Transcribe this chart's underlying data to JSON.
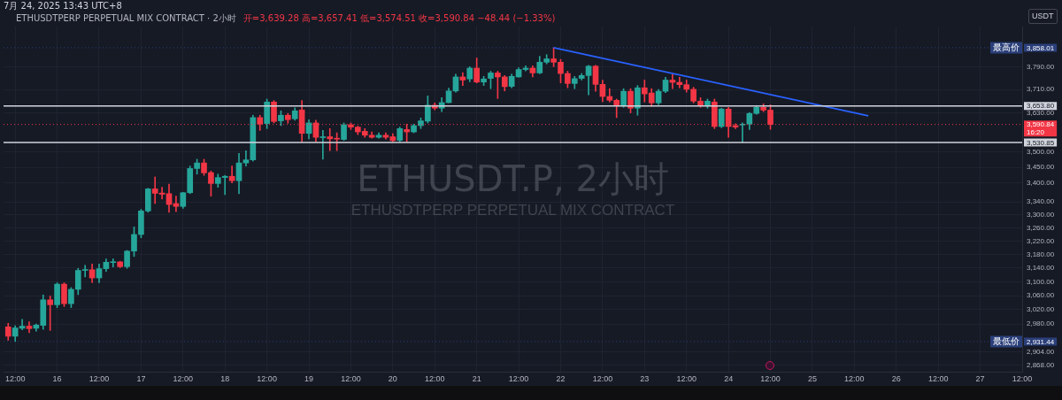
{
  "chart_data": {
    "type": "candlestick",
    "title": "ETHUSDT.P, 2小时",
    "subtitle": "ETHUSDTPERP PERPETUAL MIX CONTRACT",
    "ylabel": "USDT",
    "annotations": [
      "7月 24, 2025 13:43 UTC+8",
      "ETHUSDTPERP PERPETUAL MIX CONTRACT · 2小时",
      "开=3,639.28 高=3,657.41 低=3,574.51 收=3,590.84 −48.44 (−1.33%)"
    ],
    "x": [
      "2025-07-15T10:00",
      "2025-07-15T12:00",
      "2025-07-15T14:00",
      "2025-07-15T16:00",
      "2025-07-15T18:00",
      "2025-07-15T20:00",
      "2025-07-15T22:00",
      "2025-07-16T00:00",
      "2025-07-16T02:00",
      "2025-07-16T04:00",
      "2025-07-16T06:00",
      "2025-07-16T08:00",
      "2025-07-16T10:00",
      "2025-07-16T12:00",
      "2025-07-16T14:00",
      "2025-07-16T16:00",
      "2025-07-16T18:00",
      "2025-07-16T20:00",
      "2025-07-16T22:00",
      "2025-07-17T00:00",
      "2025-07-17T02:00",
      "2025-07-17T04:00",
      "2025-07-17T06:00",
      "2025-07-17T08:00",
      "2025-07-17T10:00",
      "2025-07-17T12:00",
      "2025-07-17T14:00",
      "2025-07-17T16:00",
      "2025-07-17T18:00",
      "2025-07-17T20:00",
      "2025-07-17T22:00",
      "2025-07-18T00:00",
      "2025-07-18T02:00",
      "2025-07-18T04:00",
      "2025-07-18T06:00",
      "2025-07-18T08:00",
      "2025-07-18T10:00",
      "2025-07-18T12:00",
      "2025-07-18T14:00",
      "2025-07-18T16:00",
      "2025-07-18T18:00",
      "2025-07-18T20:00",
      "2025-07-18T22:00",
      "2025-07-19T00:00",
      "2025-07-19T02:00",
      "2025-07-19T04:00",
      "2025-07-19T06:00",
      "2025-07-19T08:00",
      "2025-07-19T10:00",
      "2025-07-19T12:00",
      "2025-07-19T14:00",
      "2025-07-19T16:00",
      "2025-07-19T18:00",
      "2025-07-19T20:00",
      "2025-07-19T22:00",
      "2025-07-20T00:00",
      "2025-07-20T02:00",
      "2025-07-20T04:00",
      "2025-07-20T06:00",
      "2025-07-20T08:00",
      "2025-07-20T10:00",
      "2025-07-20T12:00",
      "2025-07-20T14:00",
      "2025-07-20T16:00",
      "2025-07-20T18:00",
      "2025-07-20T20:00",
      "2025-07-20T22:00",
      "2025-07-21T00:00",
      "2025-07-21T02:00",
      "2025-07-21T04:00",
      "2025-07-21T06:00",
      "2025-07-21T08:00",
      "2025-07-21T10:00",
      "2025-07-21T12:00",
      "2025-07-21T14:00",
      "2025-07-21T16:00",
      "2025-07-21T18:00",
      "2025-07-21T20:00",
      "2025-07-21T22:00",
      "2025-07-22T00:00",
      "2025-07-22T02:00",
      "2025-07-22T04:00",
      "2025-07-22T06:00",
      "2025-07-22T08:00",
      "2025-07-22T10:00",
      "2025-07-22T12:00",
      "2025-07-22T14:00",
      "2025-07-22T16:00",
      "2025-07-22T18:00",
      "2025-07-22T20:00",
      "2025-07-22T22:00",
      "2025-07-23T00:00",
      "2025-07-23T02:00",
      "2025-07-23T04:00",
      "2025-07-23T06:00",
      "2025-07-23T08:00",
      "2025-07-23T10:00",
      "2025-07-23T12:00",
      "2025-07-23T14:00",
      "2025-07-23T16:00",
      "2025-07-23T18:00",
      "2025-07-23T20:00",
      "2025-07-23T22:00",
      "2025-07-24T00:00",
      "2025-07-24T02:00",
      "2025-07-24T04:00",
      "2025-07-24T06:00",
      "2025-07-24T08:00",
      "2025-07-24T10:00",
      "2025-07-24T12:00"
    ],
    "ohlc": [
      [
        2972,
        2982,
        2935,
        2946
      ],
      [
        2946,
        2975,
        2931.44,
        2969
      ],
      [
        2968,
        2993,
        2964,
        2974
      ],
      [
        2974,
        2986,
        2956,
        2967
      ],
      [
        2968,
        2980,
        2960,
        2977
      ],
      [
        2976,
        3062,
        2965,
        3048
      ],
      [
        3048,
        3059,
        2962,
        3034
      ],
      [
        3034,
        3097,
        3026,
        3093
      ],
      [
        3093,
        3097,
        3029,
        3037
      ],
      [
        3037,
        3083,
        3026,
        3078
      ],
      [
        3078,
        3139,
        3063,
        3133
      ],
      [
        3133,
        3148,
        3114,
        3135
      ],
      [
        3135,
        3152,
        3097,
        3111
      ],
      [
        3111,
        3152,
        3097,
        3138
      ],
      [
        3138,
        3167,
        3130,
        3157
      ],
      [
        3156,
        3167,
        3143,
        3158
      ],
      [
        3158,
        3160,
        3141,
        3144
      ],
      [
        3144,
        3192,
        3139,
        3190
      ],
      [
        3190,
        3263,
        3174,
        3240
      ],
      [
        3240,
        3317,
        3230,
        3312
      ],
      [
        3312,
        3383,
        3308,
        3381
      ],
      [
        3381,
        3419,
        3335,
        3367
      ],
      [
        3368,
        3386,
        3349,
        3364
      ],
      [
        3366,
        3396,
        3308,
        3332
      ],
      [
        3335,
        3358,
        3310,
        3326
      ],
      [
        3326,
        3370,
        3320,
        3369
      ],
      [
        3369,
        3454,
        3366,
        3446
      ],
      [
        3446,
        3476,
        3428,
        3464
      ],
      [
        3464,
        3476,
        3424,
        3432
      ],
      [
        3433,
        3438,
        3358,
        3398
      ],
      [
        3398,
        3428,
        3386,
        3417
      ],
      [
        3417,
        3424,
        3363,
        3421
      ],
      [
        3421,
        3454,
        3400,
        3407
      ],
      [
        3407,
        3495,
        3366,
        3464
      ],
      [
        3464,
        3504,
        3454,
        3474
      ],
      [
        3474,
        3622,
        3470,
        3614
      ],
      [
        3614,
        3622,
        3571,
        3592
      ],
      [
        3594,
        3677,
        3577,
        3667
      ],
      [
        3667,
        3672,
        3596,
        3601
      ],
      [
        3603,
        3637,
        3587,
        3622
      ],
      [
        3622,
        3628,
        3595,
        3607
      ],
      [
        3610,
        3647,
        3605,
        3637
      ],
      [
        3640,
        3672,
        3533,
        3561
      ],
      [
        3561,
        3607,
        3543,
        3596
      ],
      [
        3596,
        3605,
        3533,
        3548
      ],
      [
        3547,
        3571,
        3476,
        3550
      ],
      [
        3550,
        3577,
        3504,
        3543
      ],
      [
        3545,
        3563,
        3504,
        3542
      ],
      [
        3541,
        3596,
        3538,
        3590
      ],
      [
        3590,
        3596,
        3574,
        3582
      ],
      [
        3582,
        3585,
        3557,
        3566
      ],
      [
        3568,
        3577,
        3548,
        3555
      ],
      [
        3555,
        3566,
        3545,
        3548
      ],
      [
        3548,
        3563,
        3545,
        3555
      ],
      [
        3555,
        3563,
        3542,
        3548
      ],
      [
        3550,
        3560,
        3533,
        3537
      ],
      [
        3538,
        3582,
        3533,
        3577
      ],
      [
        3574,
        3592,
        3533,
        3566
      ],
      [
        3566,
        3592,
        3563,
        3587
      ],
      [
        3587,
        3613,
        3577,
        3603
      ],
      [
        3602,
        3688,
        3596,
        3656
      ],
      [
        3656,
        3664,
        3640,
        3646
      ],
      [
        3646,
        3682,
        3634,
        3665
      ],
      [
        3665,
        3715,
        3664,
        3705
      ],
      [
        3705,
        3764,
        3701,
        3754
      ],
      [
        3754,
        3769,
        3724,
        3743
      ],
      [
        3747,
        3790,
        3737,
        3785
      ],
      [
        3785,
        3821,
        3733,
        3736
      ],
      [
        3736,
        3756,
        3724,
        3747
      ],
      [
        3749,
        3774,
        3713,
        3768
      ],
      [
        3768,
        3774,
        3679,
        3754
      ],
      [
        3754,
        3759,
        3705,
        3720
      ],
      [
        3721,
        3764,
        3716,
        3756
      ],
      [
        3754,
        3786,
        3753,
        3780
      ],
      [
        3780,
        3793,
        3775,
        3785
      ],
      [
        3785,
        3793,
        3754,
        3768
      ],
      [
        3768,
        3827,
        3765,
        3806
      ],
      [
        3806,
        3833,
        3800,
        3818
      ],
      [
        3818,
        3858.01,
        3790,
        3806
      ],
      [
        3806,
        3816,
        3733,
        3766
      ],
      [
        3766,
        3774,
        3716,
        3731
      ],
      [
        3731,
        3756,
        3713,
        3748
      ],
      [
        3749,
        3766,
        3743,
        3759
      ],
      [
        3759,
        3795,
        3692,
        3792
      ],
      [
        3792,
        3795,
        3704,
        3728
      ],
      [
        3728,
        3743,
        3668,
        3686
      ],
      [
        3686,
        3713,
        3667,
        3673
      ],
      [
        3673,
        3677,
        3614,
        3655
      ],
      [
        3655,
        3713,
        3649,
        3704
      ],
      [
        3704,
        3713,
        3630,
        3646
      ],
      [
        3646,
        3724,
        3622,
        3716
      ],
      [
        3716,
        3743,
        3667,
        3695
      ],
      [
        3698,
        3713,
        3652,
        3664
      ],
      [
        3664,
        3710,
        3658,
        3704
      ],
      [
        3704,
        3753,
        3699,
        3743
      ],
      [
        3743,
        3764,
        3713,
        3735
      ],
      [
        3735,
        3753,
        3716,
        3727
      ],
      [
        3727,
        3743,
        3701,
        3711
      ],
      [
        3711,
        3718,
        3664,
        3670
      ],
      [
        3670,
        3682,
        3649,
        3655
      ],
      [
        3655,
        3677,
        3646,
        3670
      ],
      [
        3667,
        3677,
        3577,
        3584
      ],
      [
        3584,
        3646,
        3580,
        3643
      ],
      [
        3643,
        3649,
        3548,
        3584
      ],
      [
        3587,
        3593,
        3577,
        3582
      ],
      [
        3589,
        3596,
        3531,
        3592
      ],
      [
        3592,
        3631,
        3574,
        3628
      ],
      [
        3628,
        3655,
        3625,
        3649
      ],
      [
        3649,
        3661,
        3634,
        3639.28
      ],
      [
        3639.28,
        3657.41,
        3574.51,
        3590.84
      ]
    ],
    "colors": [
      "#f23645",
      "#26a69a",
      "#26a69a",
      "#f23645",
      "#26a69a",
      "#26a69a",
      "#f23645",
      "#26a69a",
      "#f23645",
      "#26a69a",
      "#26a69a",
      "#26a69a",
      "#f23645",
      "#26a69a",
      "#26a69a",
      "#26a69a",
      "#f23645",
      "#26a69a",
      "#26a69a",
      "#26a69a",
      "#26a69a",
      "#f23645",
      "#f23645",
      "#f23645",
      "#f23645",
      "#26a69a",
      "#26a69a",
      "#26a69a",
      "#f23645",
      "#f23645",
      "#26a69a",
      "#26a69a",
      "#f23645",
      "#26a69a",
      "#26a69a",
      "#26a69a",
      "#f23645",
      "#26a69a",
      "#f23645",
      "#26a69a",
      "#f23645",
      "#26a69a",
      "#f23645",
      "#26a69a",
      "#f23645",
      "#26a69a",
      "#f23645",
      "#f23645",
      "#26a69a",
      "#f23645",
      "#f23645",
      "#f23645",
      "#f23645",
      "#26a69a",
      "#f23645",
      "#f23645",
      "#26a69a",
      "#f23645",
      "#26a69a",
      "#26a69a",
      "#26a69a",
      "#f23645",
      "#26a69a",
      "#26a69a",
      "#26a69a",
      "#f23645",
      "#26a69a",
      "#f23645",
      "#26a69a",
      "#26a69a",
      "#f23645",
      "#f23645",
      "#26a69a",
      "#26a69a",
      "#26a69a",
      "#f23645",
      "#26a69a",
      "#26a69a",
      "#f23645",
      "#f23645",
      "#f23645",
      "#26a69a",
      "#26a69a",
      "#26a69a",
      "#f23645",
      "#f23645",
      "#f23645",
      "#f23645",
      "#26a69a",
      "#f23645",
      "#26a69a",
      "#f23645",
      "#f23645",
      "#26a69a",
      "#26a69a",
      "#f23645",
      "#f23645",
      "#f23645",
      "#f23645",
      "#f23645",
      "#26a69a",
      "#f23645",
      "#26a69a",
      "#f23645",
      "#f23645",
      "#26a69a",
      "#26a69a",
      "#26a69a",
      "#f23645",
      "#f23645"
    ],
    "series": [
      {
        "type": "line",
        "x": [
          "2025-07-21T22:00",
          "2025-07-25T16:00"
        ],
        "values": [
          3858.01,
          3620
        ],
        "color": "#2962ff"
      }
    ],
    "xlim": [
      "2025-07-15T08:40",
      "2025-07-27T12:00"
    ],
    "xticks": [
      {
        "value": "2025-07-15T12:00",
        "label": "12:00"
      },
      {
        "value": "2025-07-16",
        "label": "16"
      },
      {
        "value": "2025-07-16T12:00",
        "label": "12:00"
      },
      {
        "value": "2025-07-17",
        "label": "17"
      },
      {
        "value": "2025-07-17T12:00",
        "label": "12:00"
      },
      {
        "value": "2025-07-18",
        "label": "18"
      },
      {
        "value": "2025-07-18T12:00",
        "label": "12:00"
      },
      {
        "value": "2025-07-19",
        "label": "19"
      },
      {
        "value": "2025-07-19T12:00",
        "label": "12:00"
      },
      {
        "value": "2025-07-20",
        "label": "20"
      },
      {
        "value": "2025-07-20T12:00",
        "label": "12:00"
      },
      {
        "value": "2025-07-21",
        "label": "21"
      },
      {
        "value": "2025-07-21T12:00",
        "label": "12:00"
      },
      {
        "value": "2025-07-22",
        "label": "22"
      },
      {
        "value": "2025-07-22T12:00",
        "label": "12:00"
      },
      {
        "value": "2025-07-23",
        "label": "23"
      },
      {
        "value": "2025-07-23T12:00",
        "label": "12:00"
      },
      {
        "value": "2025-07-24",
        "label": "24"
      },
      {
        "value": "2025-07-24T12:00",
        "label": "12:00"
      },
      {
        "value": "2025-07-25",
        "label": "25"
      },
      {
        "value": "2025-07-25T12:00",
        "label": "12:00"
      },
      {
        "value": "2025-07-26",
        "label": "26"
      },
      {
        "value": "2025-07-26T12:00",
        "label": "12:00"
      },
      {
        "value": "2025-07-27",
        "label": "27"
      },
      {
        "value": "2025-07-27T12:00",
        "label": "12:00"
      }
    ],
    "ylim": [
      2850,
      3935
    ],
    "yticks": [
      {
        "value": 2868,
        "label": "2,868.00"
      },
      {
        "value": 2904,
        "label": "2,904.00"
      },
      {
        "value": 2980,
        "label": "2,980.00"
      },
      {
        "value": 3020,
        "label": "3,020.00"
      },
      {
        "value": 3060,
        "label": "3,060.00"
      },
      {
        "value": 3100,
        "label": "3,100.00"
      },
      {
        "value": 3140,
        "label": "3,140.00"
      },
      {
        "value": 3180,
        "label": "3,180.00"
      },
      {
        "value": 3220,
        "label": "3,220.00"
      },
      {
        "value": 3260,
        "label": "3,260.00"
      },
      {
        "value": 3300,
        "label": "3,300.00"
      },
      {
        "value": 3340,
        "label": "3,340.00"
      },
      {
        "value": 3400,
        "label": "3,400.00"
      },
      {
        "value": 3450,
        "label": "3,450.00"
      },
      {
        "value": 3500,
        "label": "3,500.00"
      },
      {
        "value": 3630,
        "label": "3,630.00"
      },
      {
        "value": 3710,
        "label": "3,710.00"
      },
      {
        "value": 3790,
        "label": "3,790.00"
      }
    ],
    "log": true,
    "grid": true,
    "ref_lines": [
      {
        "axis": "y",
        "value": 3858.01,
        "label": "最高价 3,858.01",
        "color": "#2a3f7a",
        "line_style": "dotted"
      },
      {
        "axis": "y",
        "value": 3653.8,
        "label": "3,653.80",
        "color": "#d1d4dc",
        "line_style": "solid"
      },
      {
        "axis": "y",
        "value": 3590.84,
        "label": "3,590.84\n16:20",
        "color": "#f23645",
        "line_style": "dotted"
      },
      {
        "axis": "y",
        "value": 3530.85,
        "label": "3,530.85",
        "color": "#d1d4dc",
        "line_style": "solid"
      },
      {
        "axis": "y",
        "value": 2931.44,
        "label": "最低价 2,931.44",
        "color": "#2a3f7a",
        "line_style": "dotted"
      }
    ]
  }
}
